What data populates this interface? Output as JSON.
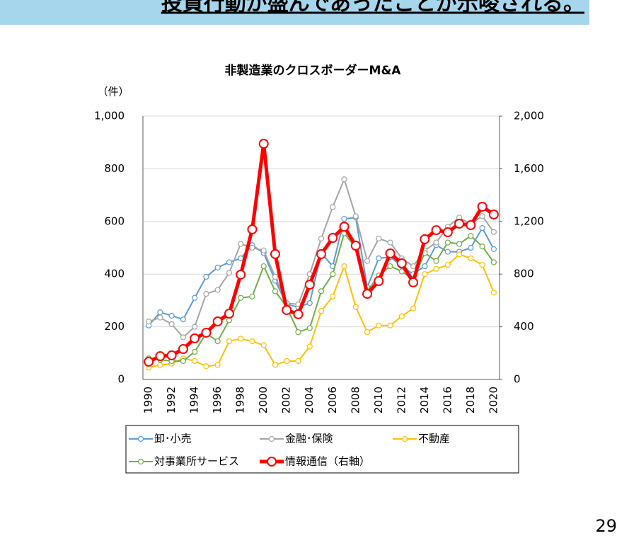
{
  "header": {
    "text": "投資行動が盛んであったことが示唆される。"
  },
  "page_number": "29",
  "chart_data": {
    "type": "line",
    "title": "非製造業のクロスボーダーM&A",
    "y_unit": "（件）",
    "categories": [
      "1990",
      null,
      "1992",
      null,
      "1994",
      null,
      "1996",
      null,
      "1998",
      null,
      "2000",
      null,
      "2002",
      null,
      "2004",
      null,
      "2006",
      null,
      "2008",
      null,
      "2010",
      null,
      "2012",
      null,
      "2014",
      null,
      "2016",
      null,
      "2018",
      null,
      "2020"
    ],
    "ylim": [
      0,
      1000
    ],
    "yticks": [
      0,
      200,
      400,
      600,
      800,
      {
        "value": 1000,
        "label": "1,000"
      }
    ],
    "y2lim": [
      0,
      2000
    ],
    "y2ticks": [
      0,
      400,
      800,
      {
        "value": 1200,
        "label": "1,200"
      },
      {
        "value": 1600,
        "label": "1,600"
      },
      {
        "value": 2000,
        "label": "2,000"
      }
    ],
    "grid": true,
    "series": [
      {
        "name": "卸･小売",
        "color": "#5b9bd5",
        "values": [
          205,
          255,
          242,
          228,
          310,
          390,
          425,
          445,
          460,
          510,
          480,
          375,
          285,
          275,
          290,
          480,
          430,
          610,
          615,
          350,
          460,
          465,
          430,
          400,
          430,
          510,
          485,
          485,
          500,
          575,
          495
        ]
      },
      {
        "name": "金融･保険",
        "color": "#a5a5a5",
        "values": [
          220,
          235,
          210,
          160,
          200,
          325,
          340,
          405,
          515,
          500,
          490,
          390,
          290,
          285,
          400,
          535,
          655,
          760,
          620,
          450,
          535,
          520,
          460,
          430,
          490,
          520,
          580,
          615,
          590,
          620,
          560
        ]
      },
      {
        "name": "不動産",
        "color": "#ffc000",
        "values": [
          45,
          55,
          60,
          80,
          70,
          50,
          55,
          145,
          155,
          145,
          130,
          55,
          70,
          70,
          125,
          260,
          315,
          430,
          275,
          180,
          205,
          205,
          240,
          270,
          400,
          420,
          435,
          475,
          460,
          435,
          330
        ]
      },
      {
        "name": "対事業所サービス",
        "color": "#70ad47",
        "values": [
          80,
          75,
          70,
          70,
          105,
          175,
          145,
          225,
          310,
          315,
          430,
          335,
          275,
          180,
          195,
          335,
          400,
          555,
          500,
          335,
          395,
          430,
          410,
          380,
          480,
          450,
          520,
          515,
          545,
          505,
          445
        ]
      },
      {
        "name": "情報通信（右軸）",
        "color": "#ff0000",
        "axis": "y2",
        "values": [
          135,
          177,
          183,
          231,
          312,
          355,
          441,
          500,
          796,
          1140,
          1790,
          952,
          527,
          495,
          720,
          952,
          1075,
          1160,
          1016,
          650,
          747,
          957,
          882,
          737,
          1065,
          1134,
          1118,
          1183,
          1172,
          1312,
          1253
        ]
      }
    ]
  }
}
